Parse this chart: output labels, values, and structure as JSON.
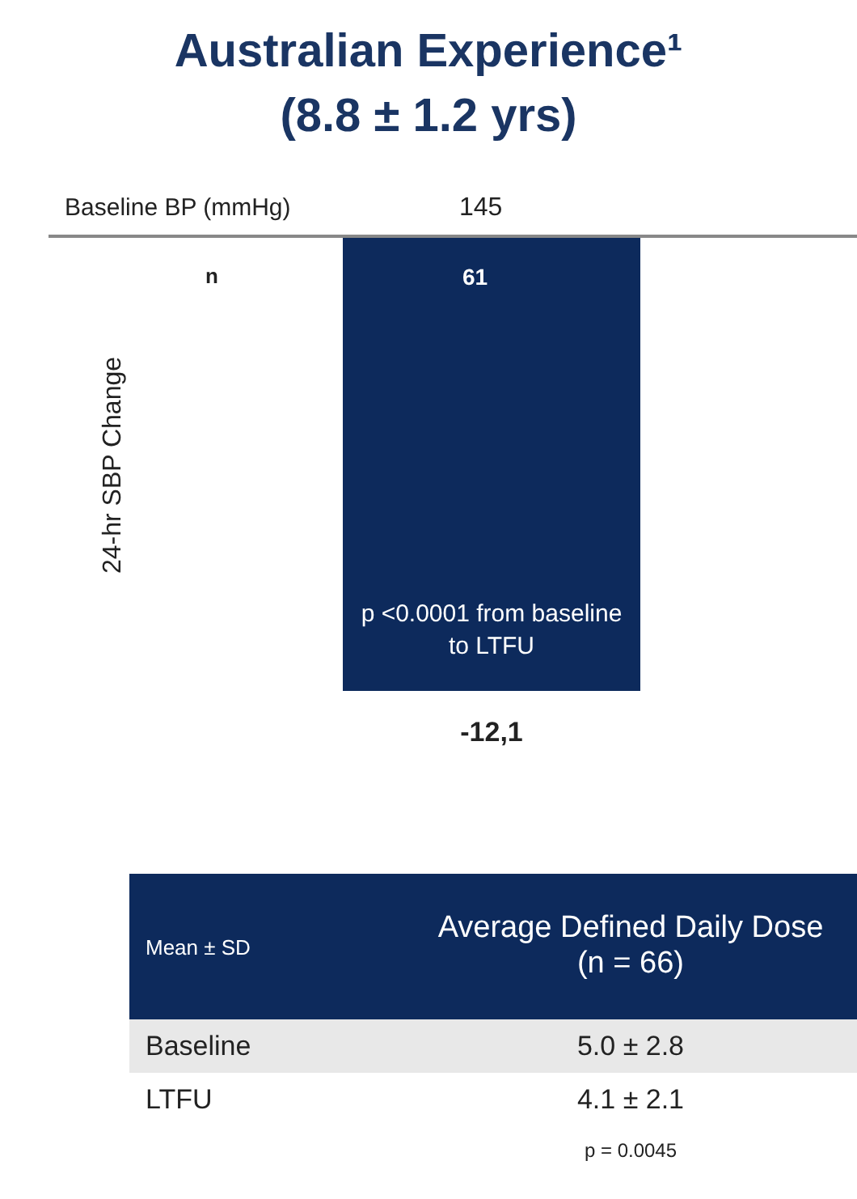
{
  "chart_data": {
    "type": "bar",
    "ylim": [
      -12.1,
      0
    ],
    "title": "Australian Experience¹",
    "subtitle": "(8.8 ± 1.2 yrs)",
    "ylabel": "24-hr SBP Change",
    "categories": [
      null
    ],
    "values": [
      -12.1
    ],
    "value_labels": [
      "-12,1"
    ],
    "color": "#0d2a5c",
    "grid": false,
    "annotations": [
      "Baseline BP (mmHg)",
      "145",
      "n",
      "61",
      "p <0.0001 from baseline to LTFU",
      "Mean ± SD",
      "Average Defined Daily Dose (n = 66)",
      "Baseline",
      "5.0 ± 2.8",
      "LTFU",
      "4.1 ± 2.1",
      "p = 0.0045"
    ]
  }
}
